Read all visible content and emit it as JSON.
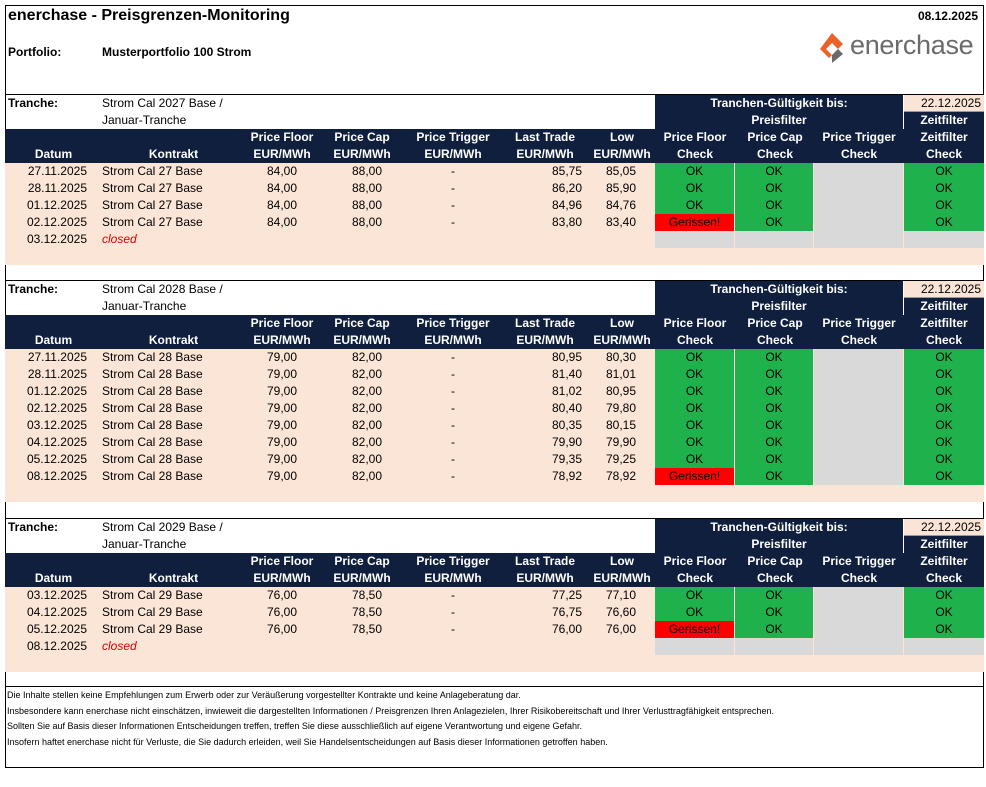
{
  "header": {
    "title": "enerchase - Preisgrenzen-Monitoring",
    "date": "08.12.2025",
    "portfolio_label": "Portfolio:",
    "portfolio_value": "Musterportfolio 100 Strom",
    "logo_text": "enerchase"
  },
  "labels": {
    "tranche": "Tranche:",
    "validity": "Tranchen-Gültigkeit bis:",
    "preisfilter": "Preisfilter",
    "zeitfilter": "Zeitfilter",
    "col_datum": "Datum",
    "col_kontrakt": "Kontrakt",
    "col_pf1": "Price Floor",
    "col_pf2": "EUR/MWh",
    "col_pc1": "Price Cap",
    "col_pc2": "EUR/MWh",
    "col_pt1": "Price Trigger",
    "col_pt2": "EUR/MWh",
    "col_lt1": "Last Trade",
    "col_lt2": "EUR/MWh",
    "col_lo1": "Low",
    "col_lo2": "EUR/MWh",
    "col_k1a": "Price Floor",
    "col_k1b": "Check",
    "col_k2a": "Price Cap",
    "col_k2b": "Check",
    "col_k3a": "Price Trigger",
    "col_k3b": "Check",
    "col_k4a": "Zeitfilter",
    "col_k4b": "Check"
  },
  "colors": {
    "navy": "#0f1f3d",
    "peach": "#fbe5d6",
    "ok_green": "#1fb14b",
    "fail_red": "#ff0000",
    "grey": "#d9d9d9",
    "closed_red": "#e00000",
    "logo_orange": "#e8622a",
    "logo_grey": "#6b6b6b"
  },
  "tranches": [
    {
      "name_line1": "Strom Cal 2027 Base /",
      "name_line2": "Januar-Tranche",
      "valid_until": "22.12.2025",
      "rows": [
        {
          "datum": "27.11.2025",
          "kontrakt": "Strom Cal 27 Base",
          "pf": "84,00",
          "pc": "88,00",
          "pt": "-",
          "lt": "85,75",
          "low": "85,05",
          "c1": "OK",
          "c2": "OK",
          "c4": "OK"
        },
        {
          "datum": "28.11.2025",
          "kontrakt": "Strom Cal 27 Base",
          "pf": "84,00",
          "pc": "88,00",
          "pt": "-",
          "lt": "86,20",
          "low": "85,90",
          "c1": "OK",
          "c2": "OK",
          "c4": "OK"
        },
        {
          "datum": "01.12.2025",
          "kontrakt": "Strom Cal 27 Base",
          "pf": "84,00",
          "pc": "88,00",
          "pt": "-",
          "lt": "84,96",
          "low": "84,76",
          "c1": "OK",
          "c2": "OK",
          "c4": "OK"
        },
        {
          "datum": "02.12.2025",
          "kontrakt": "Strom Cal 27 Base",
          "pf": "84,00",
          "pc": "88,00",
          "pt": "-",
          "lt": "83,80",
          "low": "83,40",
          "c1": "Gerissen!",
          "c2": "OK",
          "c4": "OK"
        },
        {
          "datum": "03.12.2025",
          "kontrakt": "closed",
          "closed": true
        }
      ]
    },
    {
      "name_line1": "Strom Cal 2028 Base /",
      "name_line2": "Januar-Tranche",
      "valid_until": "22.12.2025",
      "rows": [
        {
          "datum": "27.11.2025",
          "kontrakt": "Strom Cal 28 Base",
          "pf": "79,00",
          "pc": "82,00",
          "pt": "-",
          "lt": "80,95",
          "low": "80,30",
          "c1": "OK",
          "c2": "OK",
          "c4": "OK"
        },
        {
          "datum": "28.11.2025",
          "kontrakt": "Strom Cal 28 Base",
          "pf": "79,00",
          "pc": "82,00",
          "pt": "-",
          "lt": "81,40",
          "low": "81,01",
          "c1": "OK",
          "c2": "OK",
          "c4": "OK"
        },
        {
          "datum": "01.12.2025",
          "kontrakt": "Strom Cal 28 Base",
          "pf": "79,00",
          "pc": "82,00",
          "pt": "-",
          "lt": "81,02",
          "low": "80,95",
          "c1": "OK",
          "c2": "OK",
          "c4": "OK"
        },
        {
          "datum": "02.12.2025",
          "kontrakt": "Strom Cal 28 Base",
          "pf": "79,00",
          "pc": "82,00",
          "pt": "-",
          "lt": "80,40",
          "low": "79,80",
          "c1": "OK",
          "c2": "OK",
          "c4": "OK"
        },
        {
          "datum": "03.12.2025",
          "kontrakt": "Strom Cal 28 Base",
          "pf": "79,00",
          "pc": "82,00",
          "pt": "-",
          "lt": "80,35",
          "low": "80,15",
          "c1": "OK",
          "c2": "OK",
          "c4": "OK"
        },
        {
          "datum": "04.12.2025",
          "kontrakt": "Strom Cal 28 Base",
          "pf": "79,00",
          "pc": "82,00",
          "pt": "-",
          "lt": "79,90",
          "low": "79,90",
          "c1": "OK",
          "c2": "OK",
          "c4": "OK"
        },
        {
          "datum": "05.12.2025",
          "kontrakt": "Strom Cal 28 Base",
          "pf": "79,00",
          "pc": "82,00",
          "pt": "-",
          "lt": "79,35",
          "low": "79,25",
          "c1": "OK",
          "c2": "OK",
          "c4": "OK"
        },
        {
          "datum": "08.12.2025",
          "kontrakt": "Strom Cal 28 Base",
          "pf": "79,00",
          "pc": "82,00",
          "pt": "-",
          "lt": "78,92",
          "low": "78,92",
          "c1": "Gerissen!",
          "c2": "OK",
          "c4": "OK"
        }
      ]
    },
    {
      "name_line1": "Strom Cal 2029 Base /",
      "name_line2": "Januar-Tranche",
      "valid_until": "22.12.2025",
      "rows": [
        {
          "datum": "03.12.2025",
          "kontrakt": "Strom Cal 29 Base",
          "pf": "76,00",
          "pc": "78,50",
          "pt": "-",
          "lt": "77,25",
          "low": "77,10",
          "c1": "OK",
          "c2": "OK",
          "c4": "OK"
        },
        {
          "datum": "04.12.2025",
          "kontrakt": "Strom Cal 29 Base",
          "pf": "76,00",
          "pc": "78,50",
          "pt": "-",
          "lt": "76,75",
          "low": "76,60",
          "c1": "OK",
          "c2": "OK",
          "c4": "OK"
        },
        {
          "datum": "05.12.2025",
          "kontrakt": "Strom Cal 29 Base",
          "pf": "76,00",
          "pc": "78,50",
          "pt": "-",
          "lt": "76,00",
          "low": "76,00",
          "c1": "Gerissen!",
          "c2": "OK",
          "c4": "OK"
        },
        {
          "datum": "08.12.2025",
          "kontrakt": "closed",
          "closed": true
        }
      ]
    }
  ],
  "disclaimer": [
    "Die Inhalte stellen keine Empfehlungen zum Erwerb oder zur Veräußerung vorgestellter Kontrakte und keine Anlageberatung dar.",
    "Insbesondere kann enerchase nicht einschätzen, inwieweit die dargestellten Informationen / Preisgrenzen Ihren Anlagezielen, Ihrer Risikobereitschaft und Ihrer Verlusttragfähigkeit entsprechen.",
    "Sollten Sie auf Basis dieser Informationen Entscheidungen treffen, treffen Sie diese ausschließlich auf eigene Verantwortung und eigene Gefahr.",
    "Insofern haftet enerchase nicht für Verluste, die Sie dadurch erleiden, weil Sie Handelsentscheidungen auf Basis dieser Informationen getroffen haben."
  ]
}
